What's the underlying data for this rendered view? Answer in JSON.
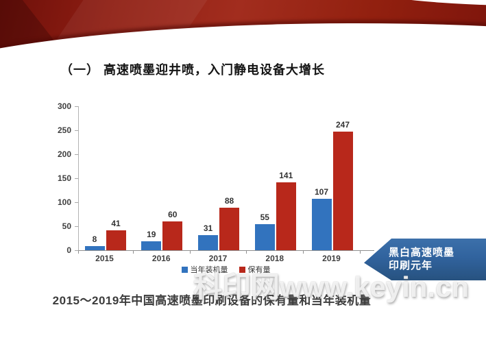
{
  "slide": {
    "title": "（一） 高速喷墨迎井喷，入门静电设备大增长",
    "caption": "2015～2019年中国高速喷墨印刷设备的保有量和当年装机量",
    "callout": {
      "line1": "黑白高速喷墨",
      "line2": "印刷元年"
    },
    "watermark": "科印网www.keyin.cn"
  },
  "colors": {
    "install_series": "#3273be",
    "holding_series": "#b8281b",
    "banner_red": "#8e1d12",
    "callout_blue": "#2f619b"
  },
  "chart_data": {
    "type": "bar",
    "title": "",
    "xlabel": "",
    "ylabel": "",
    "categories": [
      "2015",
      "2016",
      "2017",
      "2018",
      "2019"
    ],
    "series": [
      {
        "name": "当年装机量",
        "color": "#3273be",
        "values": [
          8,
          19,
          31,
          55,
          107
        ]
      },
      {
        "name": "保有量",
        "color": "#b8281b",
        "values": [
          41,
          60,
          88,
          141,
          247
        ]
      }
    ],
    "ylim": [
      0,
      300
    ],
    "yticks": [
      0,
      50,
      100,
      150,
      200,
      250,
      300
    ],
    "grid": false,
    "legend_position": "bottom"
  }
}
